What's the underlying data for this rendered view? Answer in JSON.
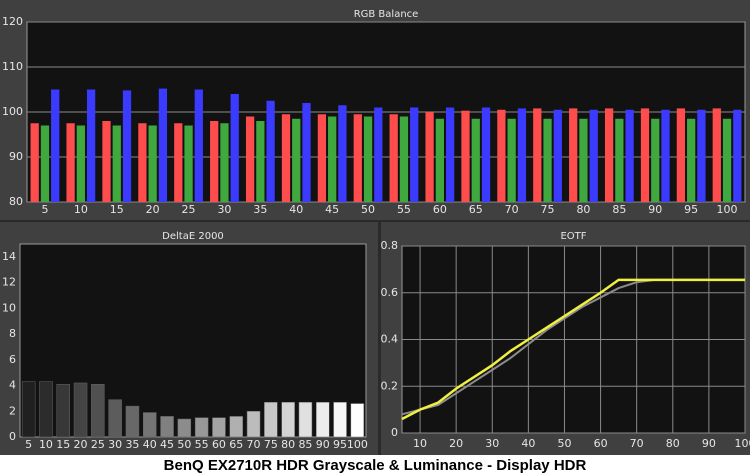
{
  "chart_data": [
    {
      "type": "bar",
      "title": "RGB Balance",
      "categories": [
        "5",
        "10",
        "15",
        "20",
        "25",
        "30",
        "35",
        "40",
        "45",
        "50",
        "55",
        "60",
        "65",
        "70",
        "75",
        "80",
        "85",
        "90",
        "95",
        "100"
      ],
      "series": [
        {
          "color": "#ff4d4d",
          "values": [
            97.5,
            97.5,
            98,
            97.5,
            97.5,
            98,
            99,
            99.5,
            99.5,
            99.5,
            99.5,
            100,
            100.3,
            100.5,
            100.8,
            100.8,
            100.8,
            100.8,
            100.8,
            100.8
          ]
        },
        {
          "color": "#3fa83f",
          "values": [
            97,
            97,
            97,
            97,
            97,
            97.5,
            98,
            98.5,
            99,
            99,
            99,
            98.5,
            98.5,
            98.5,
            98.5,
            98.5,
            98.5,
            98.5,
            98.5,
            98.5
          ]
        },
        {
          "color": "#3b3bff",
          "values": [
            105,
            105,
            104.8,
            105.2,
            105,
            104,
            102.5,
            102,
            101.5,
            101,
            101,
            101,
            101,
            100.8,
            100.5,
            100.5,
            100.5,
            100.5,
            100.5,
            100.5
          ]
        }
      ],
      "ylim": [
        80,
        120
      ],
      "yticks": [
        80,
        90,
        100,
        110,
        120
      ],
      "grid": true
    },
    {
      "type": "bar",
      "title": "DeltaE 2000",
      "categories": [
        "5",
        "10",
        "15",
        "20",
        "25",
        "30",
        "35",
        "40",
        "45",
        "50",
        "55",
        "60",
        "65",
        "70",
        "75",
        "80",
        "85",
        "90",
        "95",
        "100"
      ],
      "values": [
        4.3,
        4.3,
        4.1,
        4.2,
        4.1,
        2.9,
        2.4,
        1.9,
        1.6,
        1.4,
        1.5,
        1.5,
        1.6,
        2.0,
        2.7,
        2.7,
        2.7,
        2.7,
        2.7,
        2.6
      ],
      "colors": [
        "#202020",
        "#2c2c2c",
        "#383838",
        "#444444",
        "#505050",
        "#5c5c5c",
        "#686868",
        "#747474",
        "#808080",
        "#8c8c8c",
        "#989898",
        "#a4a4a4",
        "#b0b0b0",
        "#bcbcbc",
        "#c8c8c8",
        "#d4d4d4",
        "#e0e0e0",
        "#ececec",
        "#f6f6f6",
        "#ffffff"
      ],
      "ylim": [
        0,
        15
      ],
      "yticks": [
        0,
        2,
        4,
        6,
        8,
        10,
        12,
        14
      ],
      "grid": false
    },
    {
      "type": "line",
      "title": "EOTF",
      "x": [
        5,
        10,
        15,
        20,
        25,
        30,
        35,
        40,
        45,
        50,
        55,
        60,
        65,
        70,
        75,
        80,
        85,
        90,
        95,
        100
      ],
      "series": [
        {
          "color": "#8c8c8c",
          "values": [
            0.08,
            0.1,
            0.12,
            0.17,
            0.22,
            0.27,
            0.32,
            0.38,
            0.44,
            0.49,
            0.54,
            0.58,
            0.62,
            0.645,
            0.655,
            0.655,
            0.655,
            0.655,
            0.655,
            0.655
          ]
        },
        {
          "color": "#f0f040",
          "values": [
            0.06,
            0.1,
            0.13,
            0.19,
            0.24,
            0.29,
            0.35,
            0.4,
            0.45,
            0.5,
            0.55,
            0.6,
            0.655,
            0.655,
            0.655,
            0.655,
            0.655,
            0.655,
            0.655,
            0.655
          ]
        }
      ],
      "xlim": [
        5,
        100
      ],
      "xticks": [
        10,
        20,
        30,
        40,
        50,
        60,
        70,
        80,
        90,
        100
      ],
      "ylim": [
        0,
        0.8
      ],
      "yticks": [
        0,
        0.2,
        0.4,
        0.6,
        0.8
      ],
      "grid": true,
      "xgrid": true
    }
  ],
  "caption": "BenQ EX2710R HDR Grayscale & Luminance - Display HDR"
}
